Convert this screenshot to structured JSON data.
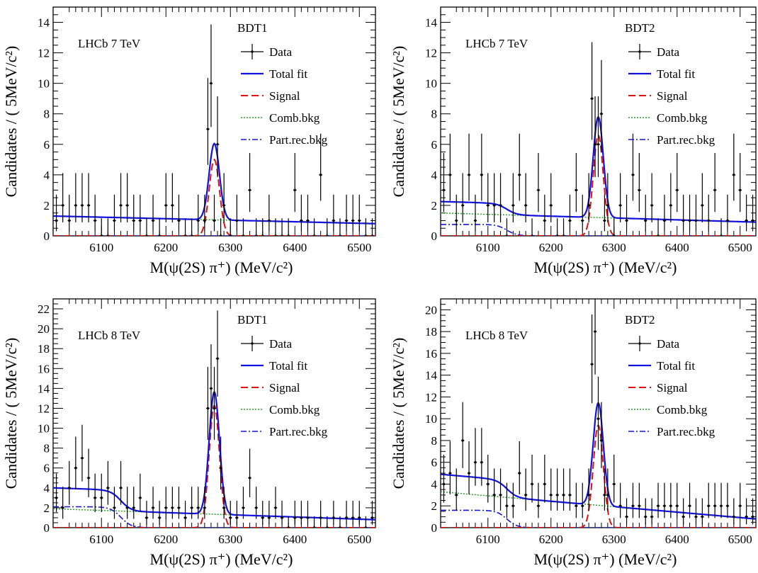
{
  "chart_data": [
    {
      "type": "scatter",
      "label": "LHCb 7 TeV",
      "category": "BDT1",
      "xlabel": "M(ψ(2S) π⁺) (MeV/c²)",
      "ylabel": "Candidates / ( 5MeV/c²)",
      "xlim": [
        6025,
        6525
      ],
      "ylim": [
        0,
        15
      ],
      "xticks": [
        6100,
        6200,
        6300,
        6400,
        6500
      ],
      "yticks": [
        0,
        2,
        4,
        6,
        8,
        10,
        12,
        14
      ],
      "legend": {
        "position": "top-right",
        "entries": [
          "Data",
          "Total fit",
          "Signal",
          "Comb.bkg",
          "Part.rec.bkg"
        ]
      },
      "fit": {
        "sig_mean": 6275,
        "sig_sigma": 8,
        "sig_peak": 5.0,
        "comb_start": 1.3,
        "comb_end": 0.8,
        "part_height": 0.0,
        "part_edge": 6130
      },
      "data": {
        "x": [
          6030,
          6040,
          6050,
          6060,
          6070,
          6080,
          6090,
          6100,
          6110,
          6120,
          6130,
          6140,
          6150,
          6160,
          6170,
          6180,
          6190,
          6200,
          6210,
          6220,
          6230,
          6240,
          6250,
          6260,
          6265,
          6270,
          6275,
          6280,
          6285,
          6290,
          6300,
          6310,
          6320,
          6330,
          6340,
          6350,
          6360,
          6370,
          6380,
          6390,
          6400,
          6410,
          6420,
          6430,
          6440,
          6450,
          6460,
          6470,
          6480,
          6490,
          6500,
          6510,
          6520
        ],
        "y": [
          1,
          2,
          1,
          2,
          2,
          2,
          1,
          0,
          0,
          1,
          2,
          2,
          1,
          1,
          0,
          1,
          0,
          2,
          2,
          1,
          0,
          0,
          1,
          1,
          7,
          10,
          1,
          6,
          0,
          2,
          0,
          1,
          0,
          3,
          0,
          0,
          1,
          0,
          0,
          0,
          3,
          1,
          1,
          0,
          4,
          0,
          1,
          0,
          1,
          1,
          1,
          0,
          0
        ]
      }
    },
    {
      "type": "scatter",
      "label": "LHCb 7 TeV",
      "category": "BDT2",
      "xlabel": "M(ψ(2S) π⁺) (MeV/c²)",
      "ylabel": "Candidates / ( 5MeV/c²)",
      "xlim": [
        6025,
        6525
      ],
      "ylim": [
        0,
        15
      ],
      "xticks": [
        6100,
        6200,
        6300,
        6400,
        6500
      ],
      "yticks": [
        0,
        2,
        4,
        6,
        8,
        10,
        12,
        14
      ],
      "legend": {
        "position": "top-right",
        "entries": [
          "Data",
          "Total fit",
          "Signal",
          "Comb.bkg",
          "Part.rec.bkg"
        ]
      },
      "fit": {
        "sig_mean": 6275,
        "sig_sigma": 8,
        "sig_peak": 6.6,
        "comb_start": 1.5,
        "comb_end": 0.9,
        "part_height": 0.75,
        "part_edge": 6130
      },
      "data": {
        "x": [
          6030,
          6040,
          6050,
          6060,
          6070,
          6080,
          6090,
          6100,
          6110,
          6120,
          6130,
          6140,
          6150,
          6160,
          6170,
          6180,
          6190,
          6200,
          6210,
          6220,
          6230,
          6240,
          6250,
          6260,
          6265,
          6270,
          6275,
          6280,
          6285,
          6290,
          6300,
          6310,
          6320,
          6330,
          6340,
          6350,
          6360,
          6370,
          6380,
          6390,
          6400,
          6410,
          6420,
          6430,
          6440,
          6450,
          6460,
          6470,
          6480,
          6490,
          6500,
          6510,
          6520
        ],
        "y": [
          3,
          4,
          1,
          2,
          4,
          1,
          4,
          2,
          2,
          2,
          0,
          2,
          4,
          2,
          0,
          3,
          1,
          2,
          0,
          0,
          1,
          3,
          1,
          2,
          9,
          6,
          6,
          8,
          1,
          2,
          0,
          2,
          1,
          4,
          3,
          1,
          2,
          0,
          1,
          2,
          3,
          1,
          1,
          1,
          2,
          1,
          3,
          0,
          1,
          4,
          3,
          1,
          1
        ]
      }
    },
    {
      "type": "scatter",
      "label": "LHCb 8 TeV",
      "category": "BDT1",
      "xlabel": "M(ψ(2S) π⁺) (MeV/c²)",
      "ylabel": "Candidates / ( 5MeV/c²)",
      "xlim": [
        6025,
        6525
      ],
      "ylim": [
        0,
        23
      ],
      "xticks": [
        6100,
        6200,
        6300,
        6400,
        6500
      ],
      "yticks": [
        0,
        2,
        4,
        6,
        8,
        10,
        12,
        14,
        16,
        18,
        20,
        22
      ],
      "legend": {
        "position": "top-right",
        "entries": [
          "Data",
          "Total fit",
          "Signal",
          "Comb.bkg",
          "Part.rec.bkg"
        ]
      },
      "fit": {
        "sig_mean": 6275,
        "sig_sigma": 8,
        "sig_peak": 12.3,
        "comb_start": 1.9,
        "comb_end": 0.8,
        "part_height": 2.1,
        "part_edge": 6130
      },
      "data": {
        "x": [
          6030,
          6040,
          6050,
          6060,
          6070,
          6080,
          6090,
          6100,
          6110,
          6120,
          6130,
          6140,
          6150,
          6160,
          6170,
          6180,
          6190,
          6200,
          6210,
          6220,
          6230,
          6240,
          6250,
          6260,
          6265,
          6270,
          6275,
          6280,
          6285,
          6290,
          6300,
          6310,
          6320,
          6330,
          6340,
          6350,
          6360,
          6370,
          6380,
          6390,
          6400,
          6410,
          6420,
          6430,
          6440,
          6450,
          6460,
          6470,
          6480,
          6490,
          6500,
          6510,
          6520
        ],
        "y": [
          3,
          2,
          4,
          6,
          7,
          5,
          3,
          3,
          4,
          2,
          4,
          2,
          2,
          3,
          1,
          2,
          1,
          2,
          2,
          2,
          1,
          2,
          2,
          2,
          12,
          14,
          12,
          17,
          6,
          2,
          1,
          1,
          2,
          5,
          2,
          1,
          1,
          2,
          1,
          0,
          1,
          1,
          1,
          0,
          1,
          0,
          1,
          0,
          1,
          1,
          1,
          0,
          1
        ]
      }
    },
    {
      "type": "scatter",
      "label": "LHCb 8 TeV",
      "category": "BDT2",
      "xlabel": "M(ψ(2S) π⁺) (MeV/c²)",
      "ylabel": "Candidates / ( 5MeV/c²)",
      "xlim": [
        6025,
        6525
      ],
      "ylim": [
        0,
        21
      ],
      "xticks": [
        6100,
        6200,
        6300,
        6400,
        6500
      ],
      "yticks": [
        0,
        2,
        4,
        6,
        8,
        10,
        12,
        14,
        16,
        18,
        20
      ],
      "legend": {
        "position": "top-right",
        "entries": [
          "Data",
          "Total fit",
          "Signal",
          "Comb.bkg",
          "Part.rec.bkg"
        ]
      },
      "fit": {
        "sig_mean": 6275,
        "sig_sigma": 8,
        "sig_peak": 9.4,
        "comb_start": 3.3,
        "comb_end": 0.8,
        "part_height": 1.6,
        "part_edge": 6130
      },
      "data": {
        "x": [
          6030,
          6040,
          6050,
          6060,
          6070,
          6080,
          6090,
          6100,
          6110,
          6120,
          6130,
          6140,
          6150,
          6160,
          6170,
          6180,
          6190,
          6200,
          6210,
          6220,
          6230,
          6240,
          6250,
          6260,
          6265,
          6270,
          6275,
          6280,
          6285,
          6290,
          6300,
          6310,
          6320,
          6330,
          6340,
          6350,
          6360,
          6370,
          6380,
          6390,
          6400,
          6410,
          6420,
          6430,
          6440,
          6450,
          6460,
          6470,
          6480,
          6490,
          6500,
          6510,
          6520
        ],
        "y": [
          4,
          5,
          3,
          8,
          5,
          6,
          6,
          4,
          3,
          3,
          2,
          2,
          5,
          3,
          4,
          2,
          4,
          3,
          3,
          3,
          3,
          2,
          2,
          3,
          15,
          18,
          10,
          8,
          3,
          3,
          4,
          2,
          1,
          2,
          2,
          1,
          1,
          2,
          2,
          2,
          2,
          1,
          2,
          1,
          1,
          2,
          2,
          2,
          2,
          1,
          2,
          1,
          1
        ]
      }
    }
  ]
}
